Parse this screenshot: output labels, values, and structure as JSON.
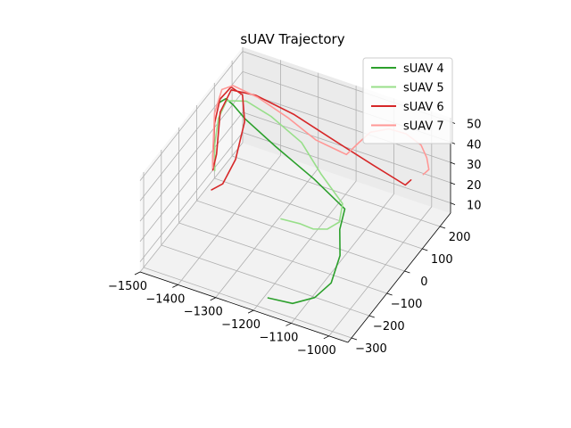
{
  "chart_data": {
    "type": "line",
    "projection": "3d",
    "title": "sUAV Trajectory",
    "xlabel": "",
    "ylabel": "",
    "zlabel": "",
    "xlim": [
      -1500,
      -950
    ],
    "ylim": [
      -320,
      260
    ],
    "zlim": [
      5,
      52
    ],
    "x_ticks": [
      -1500,
      -1400,
      -1300,
      -1200,
      -1100,
      -1000
    ],
    "x_tick_labels": [
      "−1500",
      "−1400",
      "−1300",
      "−1200",
      "−1100",
      "−1000"
    ],
    "y_ticks": [
      -300,
      -200,
      -100,
      0,
      100,
      200
    ],
    "y_tick_labels": [
      "−300",
      "−200",
      "−100",
      "0",
      "100",
      "200"
    ],
    "z_ticks": [
      10,
      20,
      30,
      40,
      50
    ],
    "z_tick_labels": [
      "10",
      "20",
      "30",
      "40",
      "50"
    ],
    "grid": true,
    "legend_position": "top-right",
    "series": [
      {
        "name": "sUAV 4",
        "color": "#2ca02c",
        "points": [
          [
            -1180,
            -280,
            8
          ],
          [
            -1120,
            -270,
            8
          ],
          [
            -1080,
            -230,
            9
          ],
          [
            -1060,
            -180,
            12
          ],
          [
            -1060,
            -130,
            20
          ],
          [
            -1070,
            -110,
            30
          ],
          [
            -1080,
            -60,
            34
          ],
          [
            -1180,
            -20,
            38
          ],
          [
            -1300,
            20,
            42
          ],
          [
            -1400,
            60,
            45
          ],
          [
            -1440,
            80,
            47
          ],
          [
            -1460,
            80,
            49
          ],
          [
            -1475,
            70,
            47
          ]
        ]
      },
      {
        "name": "sUAV 5",
        "color": "#98df8a",
        "points": [
          [
            -1230,
            -100,
            24
          ],
          [
            -1190,
            -80,
            22
          ],
          [
            -1150,
            -90,
            23
          ],
          [
            -1110,
            -95,
            26
          ],
          [
            -1090,
            -70,
            28
          ],
          [
            -1100,
            -30,
            32
          ],
          [
            -1180,
            20,
            36
          ],
          [
            -1260,
            80,
            40
          ],
          [
            -1350,
            100,
            45
          ],
          [
            -1420,
            110,
            47
          ],
          [
            -1465,
            95,
            46
          ],
          [
            -1480,
            80,
            38
          ],
          [
            -1485,
            70,
            26
          ],
          [
            -1485,
            70,
            13
          ]
        ]
      },
      {
        "name": "sUAV 6",
        "color": "#d62728",
        "points": [
          [
            -1470,
            20,
            10
          ],
          [
            -1450,
            40,
            12
          ],
          [
            -1430,
            70,
            22
          ],
          [
            -1420,
            100,
            38
          ],
          [
            -1435,
            120,
            48
          ],
          [
            -1465,
            120,
            50
          ],
          [
            -1485,
            100,
            45
          ],
          [
            -1490,
            80,
            35
          ],
          [
            -1490,
            70,
            20
          ],
          [
            -1490,
            70,
            13
          ],
          [
            -1485,
            80,
            20
          ],
          [
            -1480,
            90,
            40
          ],
          [
            -1460,
            110,
            50
          ],
          [
            -1400,
            120,
            50
          ],
          [
            -1300,
            120,
            47
          ],
          [
            -1200,
            110,
            43
          ],
          [
            -1080,
            100,
            38
          ],
          [
            -990,
            90,
            35
          ],
          [
            -980,
            100,
            37
          ]
        ]
      },
      {
        "name": "sUAV 7",
        "color": "#ff9896",
        "points": [
          [
            -980,
            170,
            32
          ],
          [
            -970,
            180,
            34
          ],
          [
            -980,
            190,
            38
          ],
          [
            -1000,
            200,
            42
          ],
          [
            -1040,
            200,
            45
          ],
          [
            -1080,
            190,
            46
          ],
          [
            -1120,
            170,
            44
          ],
          [
            -1140,
            150,
            40
          ],
          [
            -1160,
            120,
            36
          ],
          [
            -1240,
            120,
            38
          ],
          [
            -1320,
            130,
            43
          ],
          [
            -1400,
            130,
            48
          ],
          [
            -1460,
            120,
            51
          ],
          [
            -1480,
            100,
            50
          ],
          [
            -1490,
            80,
            40
          ],
          [
            -1490,
            70,
            22
          ],
          [
            -1490,
            70,
            14
          ]
        ]
      }
    ]
  }
}
